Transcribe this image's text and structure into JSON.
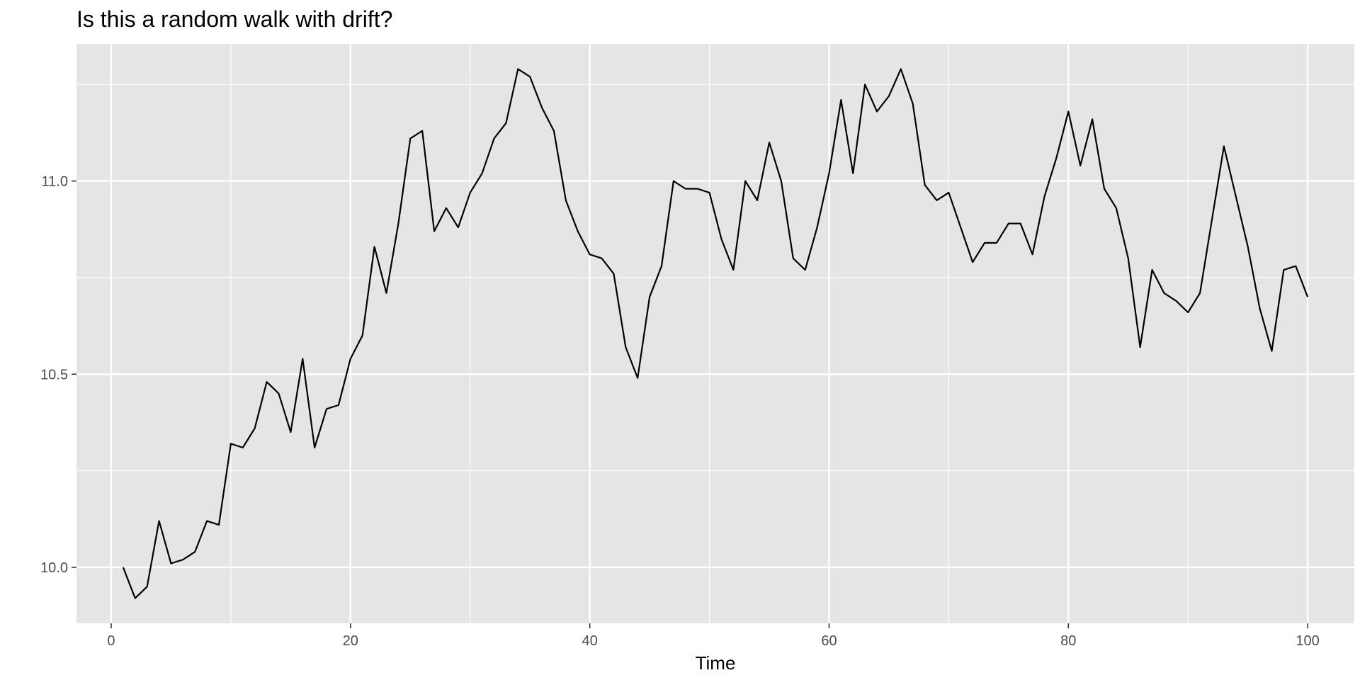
{
  "chart_data": {
    "type": "line",
    "title": "Is this a random walk with drift?",
    "xlabel": "Time",
    "ylabel": "",
    "xlim": [
      -2.9,
      103.9
    ],
    "ylim": [
      9.855,
      11.355
    ],
    "x_ticks": [
      0,
      20,
      40,
      60,
      80,
      100
    ],
    "x_tick_labels": [
      "0",
      "20",
      "40",
      "60",
      "80",
      "100"
    ],
    "y_ticks": [
      10.0,
      10.5,
      11.0
    ],
    "y_tick_labels": [
      "10.0",
      "10.5",
      "11.0"
    ],
    "grid": true,
    "legend": "none",
    "colors": {
      "panel": "#e5e5e5",
      "grid": "#ffffff",
      "line": "#000000",
      "tick": "#333333"
    },
    "series": [
      {
        "x": [
          1,
          2,
          3,
          4,
          5,
          6,
          7,
          8,
          9,
          10,
          11,
          12,
          13,
          14,
          15,
          16,
          17,
          18,
          19,
          20,
          21,
          22,
          23,
          24,
          25,
          26,
          27,
          28,
          29,
          30,
          31,
          32,
          33,
          34,
          35,
          36,
          37,
          38,
          39,
          40,
          41,
          42,
          43,
          44,
          45,
          46,
          47,
          48,
          49,
          50,
          51,
          52,
          53,
          54,
          55,
          56,
          57,
          58,
          59,
          60,
          61,
          62,
          63,
          64,
          65,
          66,
          67,
          68,
          69,
          70,
          71,
          72,
          73,
          74,
          75,
          76,
          77,
          78,
          79,
          80,
          81,
          82,
          83,
          84,
          85,
          86,
          87,
          88,
          89,
          90,
          91,
          92,
          93,
          94,
          95,
          96,
          97,
          98,
          99,
          100
        ],
        "values": [
          10.0,
          9.92,
          9.95,
          10.12,
          10.01,
          10.02,
          10.04,
          10.12,
          10.11,
          10.32,
          10.31,
          10.36,
          10.48,
          10.45,
          10.35,
          10.54,
          10.31,
          10.41,
          10.42,
          10.54,
          10.6,
          10.83,
          10.71,
          10.89,
          11.11,
          11.13,
          10.87,
          10.93,
          10.88,
          10.97,
          11.02,
          11.11,
          11.15,
          11.29,
          11.27,
          11.19,
          11.13,
          10.95,
          10.87,
          10.81,
          10.8,
          10.76,
          10.57,
          10.49,
          10.7,
          10.78,
          11.0,
          10.98,
          10.98,
          10.97,
          10.85,
          10.77,
          11.0,
          10.95,
          11.1,
          11.0,
          10.8,
          10.77,
          10.88,
          11.02,
          11.21,
          11.02,
          11.25,
          11.18,
          11.22,
          11.29,
          11.2,
          10.99,
          10.95,
          10.97,
          10.88,
          10.79,
          10.84,
          10.84,
          10.89,
          10.89,
          10.81,
          10.96,
          11.06,
          11.18,
          11.04,
          11.16,
          10.98,
          10.93,
          10.8,
          10.57,
          10.77,
          10.71,
          10.69,
          10.66,
          10.71,
          10.9,
          11.09,
          10.96,
          10.83,
          10.67,
          10.56,
          10.77,
          10.78,
          10.7
        ]
      }
    ]
  }
}
